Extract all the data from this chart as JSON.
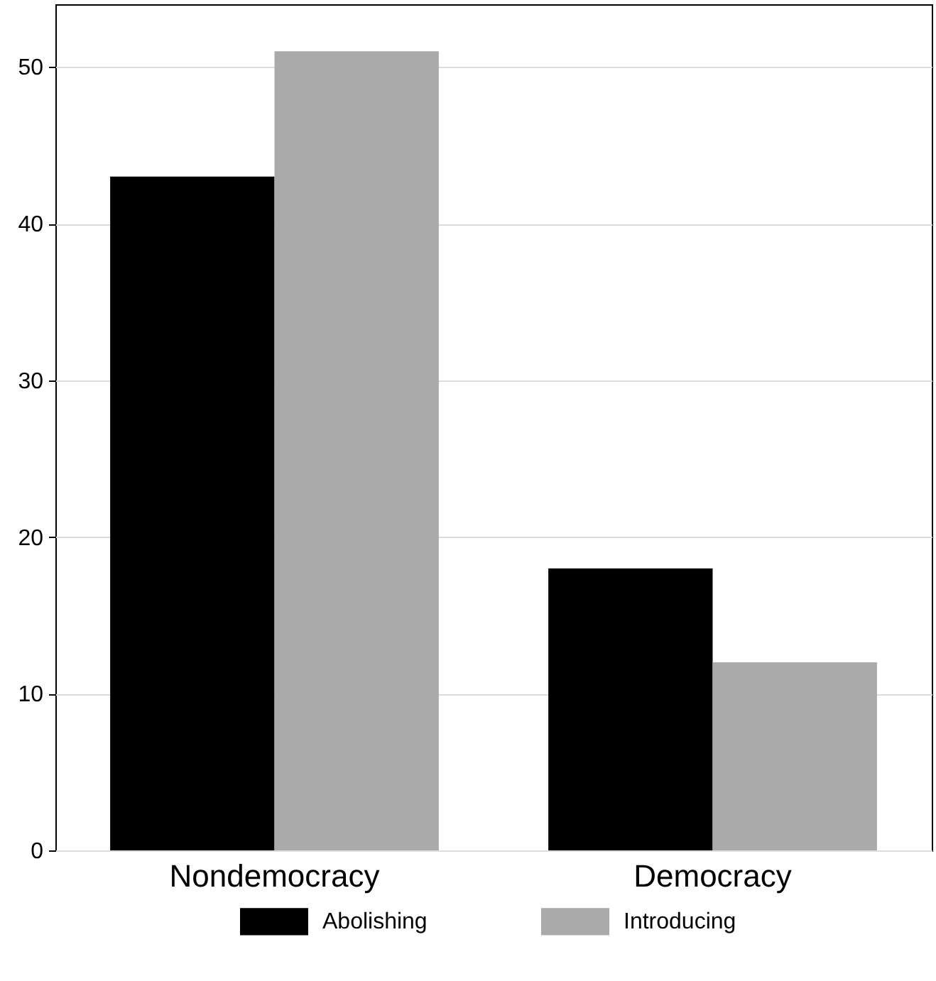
{
  "chart_data": {
    "type": "bar",
    "categories": [
      "Nondemocracy",
      "Democracy"
    ],
    "series": [
      {
        "name": "Abolishing",
        "color": "#000000",
        "values": [
          43,
          18
        ]
      },
      {
        "name": "Introducing",
        "color": "#aaaaaa",
        "values": [
          51,
          12
        ]
      }
    ],
    "ylim": [
      0,
      54
    ],
    "yticks": [
      0,
      10,
      20,
      30,
      40,
      50
    ],
    "grid": "y",
    "legend": "bottom"
  }
}
